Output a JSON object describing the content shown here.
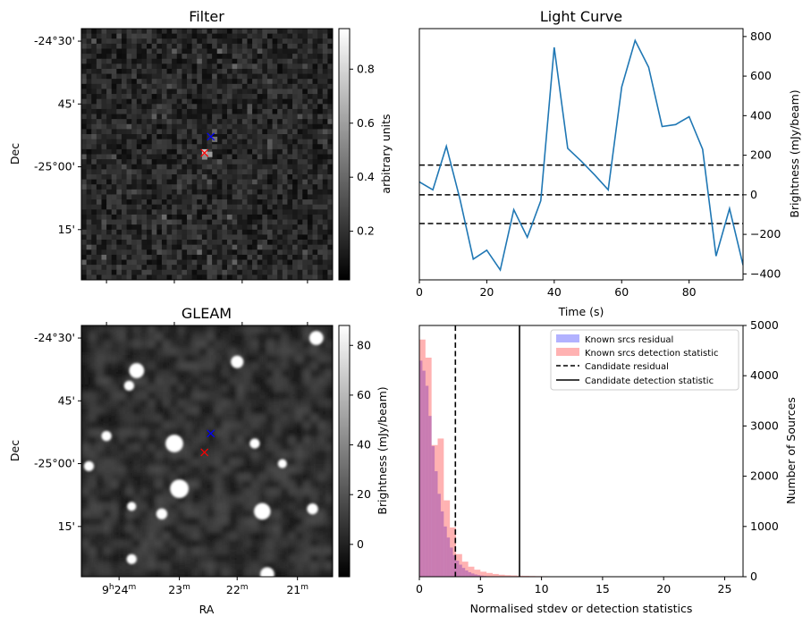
{
  "chart_data": [
    {
      "type": "heatmap",
      "title": "Filter",
      "xlabel": "",
      "ylabel": "Dec",
      "yticks": [
        "-24°30'",
        "45'",
        "-25°00'",
        "15'"
      ],
      "colorbar": {
        "label": "arbitrary units",
        "ticks": [
          "0.2",
          "0.4",
          "0.6",
          "0.8"
        ],
        "range": [
          0.02,
          0.95
        ]
      },
      "markers": [
        {
          "symbol": "x",
          "color": "#0000ff",
          "px": 0.515,
          "py": 0.43
        },
        {
          "symbol": "x",
          "color": "#ff0000",
          "px": 0.49,
          "py": 0.495
        }
      ],
      "grid_size": 50,
      "seed": 7
    },
    {
      "type": "line",
      "title": "Light Curve",
      "xlabel": "Time (s)",
      "ylabel": "Brightness (mJy/beam)",
      "xlim": [
        0,
        96
      ],
      "ylim": [
        -430,
        840
      ],
      "xticks": [
        0,
        20,
        40,
        60,
        80
      ],
      "yticks": [
        -400,
        -200,
        0,
        200,
        400,
        600,
        800
      ],
      "series": [
        {
          "color": "#1f77b4",
          "x": [
            0,
            4,
            8,
            12,
            16,
            20,
            24,
            28,
            32,
            36,
            40,
            44,
            48,
            52,
            56,
            60,
            64,
            68,
            72,
            76,
            80,
            84,
            88,
            92,
            96
          ],
          "y": [
            65,
            25,
            245,
            -20,
            -325,
            -280,
            -380,
            -75,
            -215,
            -30,
            745,
            235,
            170,
            100,
            25,
            545,
            780,
            645,
            345,
            355,
            395,
            230,
            -310,
            -70,
            -355
          ]
        }
      ],
      "hlines": [
        {
          "y": 150,
          "style": "dashed",
          "color": "#000000"
        },
        {
          "y": 0,
          "style": "dashed",
          "color": "#000000"
        },
        {
          "y": -145,
          "style": "dashed",
          "color": "#000000"
        }
      ]
    },
    {
      "type": "heatmap",
      "title": "GLEAM",
      "xlabel": "RA",
      "ylabel": "Dec",
      "xticks": [
        {
          "h": "9",
          "m": "24"
        },
        {
          "h": "",
          "m": "23"
        },
        {
          "h": "",
          "m": "22"
        },
        {
          "h": "",
          "m": "21"
        }
      ],
      "yticks": [
        "-24°30'",
        "45'",
        "-25°00'",
        "15'"
      ],
      "colorbar": {
        "label": "Brightness (mJy/beam)",
        "ticks": [
          "0",
          "20",
          "40",
          "60",
          "80"
        ],
        "range": [
          -13,
          88
        ]
      },
      "sources": [
        {
          "px": 0.935,
          "py": 0.05,
          "r": 0.028
        },
        {
          "px": 0.22,
          "py": 0.18,
          "r": 0.03
        },
        {
          "px": 0.19,
          "py": 0.24,
          "r": 0.02
        },
        {
          "px": 0.62,
          "py": 0.145,
          "r": 0.025
        },
        {
          "px": 0.37,
          "py": 0.47,
          "r": 0.035
        },
        {
          "px": 0.1,
          "py": 0.44,
          "r": 0.02
        },
        {
          "px": 0.69,
          "py": 0.47,
          "r": 0.02
        },
        {
          "px": 0.03,
          "py": 0.56,
          "r": 0.02
        },
        {
          "px": 0.39,
          "py": 0.65,
          "r": 0.037
        },
        {
          "px": 0.8,
          "py": 0.55,
          "r": 0.018
        },
        {
          "px": 0.32,
          "py": 0.75,
          "r": 0.022
        },
        {
          "px": 0.72,
          "py": 0.74,
          "r": 0.033
        },
        {
          "px": 0.92,
          "py": 0.73,
          "r": 0.022
        },
        {
          "px": 0.2,
          "py": 0.72,
          "r": 0.018
        },
        {
          "px": 0.2,
          "py": 0.93,
          "r": 0.02
        },
        {
          "px": 0.74,
          "py": 0.99,
          "r": 0.028
        }
      ],
      "markers": [
        {
          "symbol": "x",
          "color": "#0000ff",
          "px": 0.515,
          "py": 0.43
        },
        {
          "symbol": "x",
          "color": "#ff0000",
          "px": 0.49,
          "py": 0.505
        }
      ]
    },
    {
      "type": "bar",
      "title": "",
      "xlabel": "Normalised stdev or detection statistics",
      "ylabel": "Number of Sources",
      "xlim": [
        0,
        26.5
      ],
      "ylim": [
        0,
        5000
      ],
      "xticks": [
        0,
        5,
        10,
        15,
        20,
        25
      ],
      "yticks": [
        0,
        1000,
        2000,
        3000,
        4000,
        5000
      ],
      "bin_width": 0.5,
      "series": [
        {
          "name": "Known srcs residual",
          "color": "#0000ff",
          "alpha": 0.3,
          "x0": 0.0,
          "bin_width": 0.25,
          "values": [
            4300,
            4100,
            3800,
            3200,
            2600,
            2100,
            1650,
            1300,
            1000,
            780,
            580,
            430,
            320,
            240,
            175,
            125,
            90,
            65,
            45,
            32,
            22,
            15,
            10,
            6
          ]
        },
        {
          "name": "Known srcs detection statistic",
          "color": "#ff0000",
          "alpha": 0.3,
          "x0": 0.0,
          "bin_width": 0.5,
          "values": [
            4720,
            4360,
            2620,
            2750,
            1520,
            980,
            450,
            300,
            200,
            140,
            100,
            75,
            55,
            40,
            30,
            25,
            20,
            18,
            15,
            12,
            10,
            9,
            8,
            7,
            6,
            5,
            5,
            4,
            4,
            3,
            3,
            3,
            2,
            2,
            2,
            2,
            2,
            1,
            1,
            1,
            1,
            1,
            1,
            1,
            1,
            1,
            1,
            1,
            1,
            1,
            1
          ]
        }
      ],
      "vlines": [
        {
          "name": "Candidate residual",
          "x": 2.95,
          "style": "dashed",
          "color": "#000000"
        },
        {
          "name": "Candidate detection statistic",
          "x": 8.2,
          "style": "solid",
          "color": "#000000"
        }
      ],
      "legend": "top-right"
    }
  ]
}
